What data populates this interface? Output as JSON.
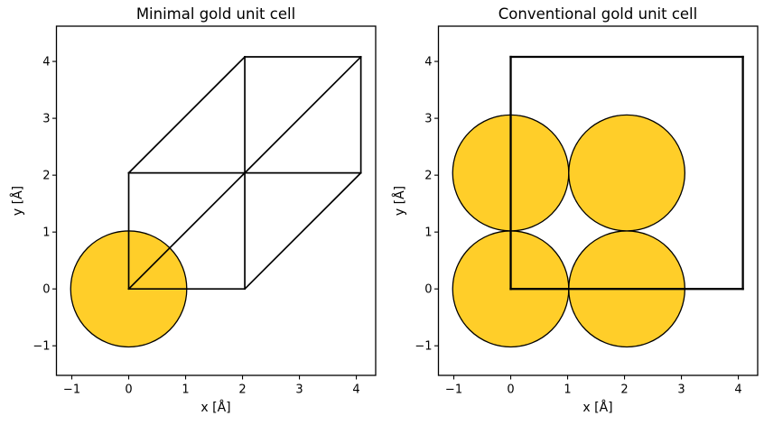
{
  "figure": {
    "background": "#ffffff",
    "text_color": "#000000"
  },
  "chart_data": [
    {
      "type": "scatter",
      "title": "Minimal gold unit cell",
      "xlabel": "x [Å]",
      "ylabel": "y [Å]",
      "xlim": [
        -1.27,
        4.34
      ],
      "ylim": [
        -1.52,
        4.62
      ],
      "xticks": [
        -1,
        0,
        1,
        2,
        3,
        4
      ],
      "xtick_labels": [
        "−1",
        "0",
        "1",
        "2",
        "3",
        "4"
      ],
      "yticks": [
        -1,
        0,
        1,
        2,
        3,
        4
      ],
      "ytick_labels": [
        "−1",
        "0",
        "1",
        "2",
        "3",
        "4"
      ],
      "grid": false,
      "atoms": [
        [
          0,
          0
        ]
      ],
      "atom_radius": 1.02,
      "atom_fill": "#FFCE29",
      "atom_edge": "#000000",
      "cell_color": "#000000",
      "cell_linewidth": 1.7,
      "cell_edges": [
        [
          0,
          0,
          2.04,
          0
        ],
        [
          0,
          0,
          0,
          2.04
        ],
        [
          0,
          0,
          2.04,
          2.04
        ],
        [
          2.04,
          0,
          2.04,
          2.04
        ],
        [
          2.04,
          0,
          4.08,
          2.04
        ],
        [
          0,
          2.04,
          2.04,
          2.04
        ],
        [
          0,
          2.04,
          2.04,
          4.08
        ],
        [
          2.04,
          2.04,
          4.08,
          2.04
        ],
        [
          2.04,
          2.04,
          2.04,
          4.08
        ],
        [
          2.04,
          2.04,
          4.08,
          4.08
        ],
        [
          4.08,
          2.04,
          4.08,
          4.08
        ],
        [
          2.04,
          4.08,
          4.08,
          4.08
        ]
      ]
    },
    {
      "type": "scatter",
      "title": "Conventional gold unit cell",
      "xlabel": "x [Å]",
      "ylabel": "y [Å]",
      "xlim": [
        -1.27,
        4.34
      ],
      "ylim": [
        -1.52,
        4.62
      ],
      "xticks": [
        -1,
        0,
        1,
        2,
        3,
        4
      ],
      "xtick_labels": [
        "−1",
        "0",
        "1",
        "2",
        "3",
        "4"
      ],
      "yticks": [
        -1,
        0,
        1,
        2,
        3,
        4
      ],
      "ytick_labels": [
        "−1",
        "0",
        "1",
        "2",
        "3",
        "4"
      ],
      "grid": false,
      "atoms": [
        [
          0,
          0
        ],
        [
          2.04,
          0
        ],
        [
          0,
          2.04
        ],
        [
          2.04,
          2.04
        ]
      ],
      "atom_radius": 1.02,
      "atom_fill": "#FFCE29",
      "atom_edge": "#000000",
      "cell_color": "#000000",
      "cell_linewidth": 2.3,
      "cell_edges": [
        [
          0,
          0,
          4.08,
          0
        ],
        [
          4.08,
          0,
          4.08,
          4.08
        ],
        [
          4.08,
          4.08,
          0,
          4.08
        ],
        [
          0,
          4.08,
          0,
          0
        ]
      ]
    }
  ]
}
